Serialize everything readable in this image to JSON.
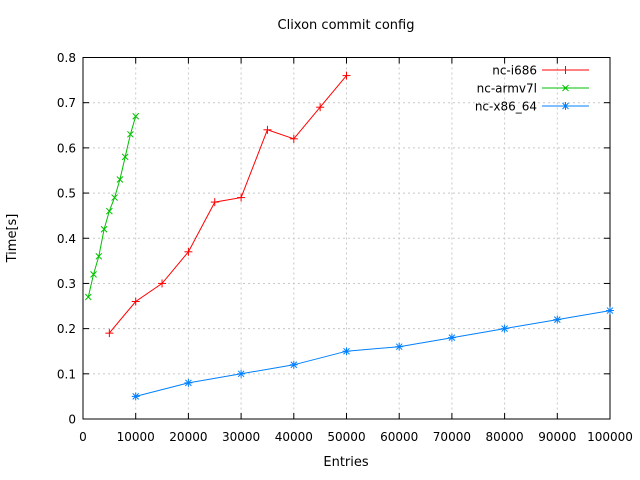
{
  "window": {
    "title": "Clixon commit config"
  },
  "colors": {
    "background": "#ffffff",
    "border": "#000000",
    "grid": "#c8c8c8",
    "text": "#000000",
    "series_red": "#ff0000",
    "series_green": "#00c000",
    "series_blue": "#0080ff"
  },
  "chart_data": {
    "type": "line",
    "title": "Clixon commit config",
    "xlabel": "Entries",
    "ylabel": "Time[s]",
    "xlim": [
      0,
      100000
    ],
    "ylim": [
      0,
      0.8
    ],
    "grid": true,
    "legend_position": "top-right",
    "x_ticks": [
      0,
      10000,
      20000,
      30000,
      40000,
      50000,
      60000,
      70000,
      80000,
      90000,
      100000
    ],
    "x_tick_labels": [
      "0",
      "10000",
      "20000",
      "30000",
      "40000",
      "50000",
      "60000",
      "70000",
      "80000",
      "90000",
      "100000"
    ],
    "y_ticks": [
      0,
      0.1,
      0.2,
      0.3,
      0.4,
      0.5,
      0.6,
      0.7,
      0.8
    ],
    "y_tick_labels": [
      "0",
      "0.1",
      "0.2",
      "0.3",
      "0.4",
      "0.5",
      "0.6",
      "0.7",
      "0.8"
    ],
    "series": [
      {
        "name": "nc-i686",
        "color": "#ff0000",
        "marker": "plus",
        "x": [
          5000,
          10000,
          15000,
          20000,
          25000,
          30000,
          35000,
          40000,
          45000,
          50000
        ],
        "y": [
          0.19,
          0.26,
          0.3,
          0.37,
          0.48,
          0.49,
          0.64,
          0.62,
          0.69,
          0.76
        ]
      },
      {
        "name": "nc-armv7l",
        "color": "#00c000",
        "marker": "cross",
        "x": [
          1000,
          2000,
          3000,
          4000,
          5000,
          6000,
          7000,
          8000,
          9000,
          10000
        ],
        "y": [
          0.27,
          0.32,
          0.36,
          0.42,
          0.46,
          0.49,
          0.53,
          0.58,
          0.63,
          0.67
        ]
      },
      {
        "name": "nc-x86_64",
        "color": "#0080ff",
        "marker": "asterisk",
        "x": [
          10000,
          20000,
          30000,
          40000,
          50000,
          60000,
          70000,
          80000,
          90000,
          100000
        ],
        "y": [
          0.05,
          0.08,
          0.1,
          0.12,
          0.15,
          0.16,
          0.18,
          0.2,
          0.22,
          0.24
        ]
      }
    ]
  }
}
